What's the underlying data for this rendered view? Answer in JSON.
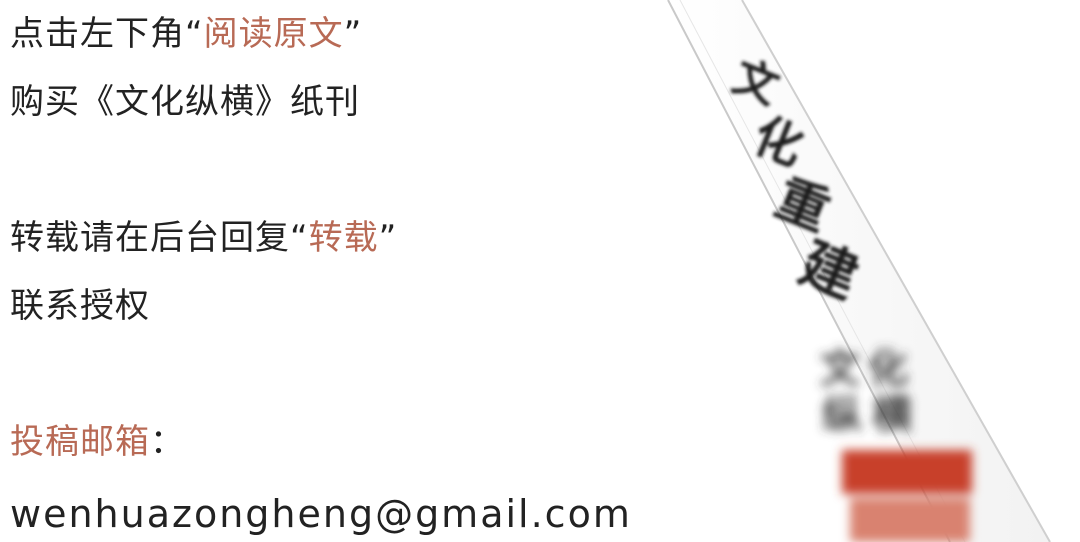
{
  "text_block": {
    "line1_prefix": "点击左下角",
    "line1_open_quote": "“",
    "line1_highlight": "阅读原文",
    "line1_close_quote": "”",
    "line2": "购买《文化纵横》纸刊",
    "line3_prefix": "转载请在后台回复",
    "line3_open_quote": "“",
    "line3_highlight": "转载",
    "line3_close_quote": "”",
    "line4": "联系授权",
    "line5_highlight": "投稿邮箱",
    "line5_colon": "：",
    "email": "wenhuazongheng@gmail.com"
  },
  "photo": {
    "spine_title": [
      "文",
      "化",
      "重",
      "建"
    ],
    "logo_text": [
      "文",
      "化",
      "纵",
      "横"
    ]
  },
  "colors": {
    "accent": "#b86a55",
    "text": "#222222",
    "logo_red": "#c8402a"
  }
}
